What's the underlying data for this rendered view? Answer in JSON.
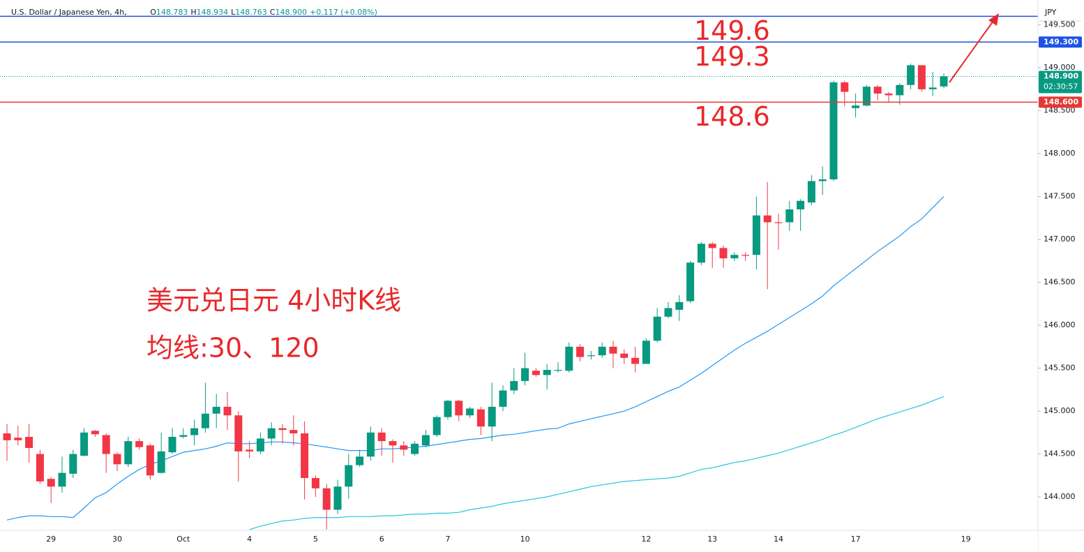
{
  "header": {
    "symbol": "U.S. Dollar / Japanese Yen, 4h,",
    "ohlc": [
      {
        "key": "O",
        "value": "148.783"
      },
      {
        "key": "H",
        "value": "148.934"
      },
      {
        "key": "L",
        "value": "148.763"
      },
      {
        "key": "C",
        "value": "148.900"
      }
    ],
    "change": "+0.117 (+0.08%)"
  },
  "chart_data": {
    "type": "candlestick",
    "currency": "JPY",
    "annotations": [
      "美元兑日元 4小时K线",
      "均线:30、120"
    ],
    "categories": [
      null,
      null,
      null,
      null,
      "29",
      null,
      null,
      null,
      null,
      null,
      "30",
      null,
      null,
      null,
      null,
      null,
      "Oct",
      null,
      null,
      null,
      null,
      null,
      "4",
      null,
      null,
      null,
      null,
      null,
      "5",
      null,
      null,
      null,
      null,
      null,
      "6",
      null,
      null,
      null,
      null,
      null,
      "7",
      null,
      null,
      null,
      null,
      null,
      null,
      "10",
      null,
      null,
      null,
      null,
      null,
      null,
      null,
      null,
      null,
      null,
      "12",
      null,
      null,
      null,
      null,
      null,
      "13",
      null,
      null,
      null,
      null,
      null,
      "14",
      null,
      null,
      null,
      null,
      null,
      null,
      "17",
      null,
      null,
      null,
      null,
      null,
      null,
      null,
      null,
      null,
      "19"
    ],
    "open": [
      144.74,
      144.69,
      144.7,
      144.5,
      144.21,
      144.12,
      144.27,
      144.48,
      144.77,
      144.72,
      144.5,
      144.38,
      144.65,
      144.6,
      144.28,
      144.52,
      144.7,
      144.72,
      144.8,
      144.97,
      145.05,
      144.95,
      144.55,
      144.53,
      144.68,
      144.8,
      144.78,
      144.74,
      144.22,
      144.1,
      143.85,
      144.12,
      144.37,
      144.47,
      144.75,
      144.65,
      144.6,
      144.5,
      144.6,
      144.72,
      144.93,
      145.12,
      144.95,
      145.02,
      144.82,
      145.05,
      145.24,
      145.35,
      145.47,
      145.42,
      145.47,
      145.47,
      145.75,
      145.64,
      145.65,
      145.75,
      145.67,
      145.62,
      145.55,
      145.82,
      146.1,
      146.18,
      146.28,
      146.73,
      146.95,
      146.9,
      146.78,
      146.82,
      146.82,
      147.28,
      147.2,
      147.2,
      147.35,
      147.43,
      147.68,
      147.7,
      148.83,
      148.53,
      148.56,
      148.78,
      148.7,
      148.68,
      148.8,
      149.03,
      148.75,
      148.783,
      null,
      null
    ],
    "high": [
      144.85,
      144.83,
      144.85,
      144.55,
      144.23,
      144.47,
      144.55,
      144.8,
      144.78,
      144.74,
      144.52,
      144.7,
      144.68,
      144.62,
      144.75,
      144.8,
      144.8,
      144.9,
      145.33,
      145.2,
      145.22,
      145.0,
      144.65,
      144.75,
      144.87,
      144.85,
      144.95,
      144.88,
      144.25,
      144.15,
      144.2,
      144.5,
      144.55,
      144.82,
      144.8,
      144.67,
      144.65,
      144.65,
      144.78,
      144.95,
      145.13,
      145.13,
      145.05,
      145.05,
      145.33,
      145.3,
      145.5,
      145.68,
      145.5,
      145.55,
      145.57,
      145.8,
      145.78,
      145.7,
      145.8,
      145.82,
      145.72,
      145.75,
      145.85,
      146.2,
      146.27,
      146.35,
      146.75,
      146.97,
      146.97,
      146.93,
      146.85,
      146.85,
      147.5,
      147.67,
      147.3,
      147.45,
      147.47,
      147.75,
      147.85,
      148.85,
      148.85,
      148.7,
      148.8,
      148.8,
      148.72,
      148.82,
      149.05,
      149.03,
      148.95,
      148.934,
      null,
      null
    ],
    "low": [
      144.42,
      144.6,
      144.4,
      144.15,
      143.93,
      144.05,
      144.22,
      144.47,
      144.7,
      144.28,
      144.3,
      144.35,
      144.55,
      144.2,
      144.27,
      144.5,
      144.68,
      144.6,
      144.75,
      144.8,
      144.78,
      144.18,
      144.45,
      144.5,
      144.6,
      144.62,
      144.6,
      143.97,
      144.0,
      143.62,
      143.8,
      143.98,
      144.35,
      144.42,
      144.48,
      144.4,
      144.48,
      144.48,
      144.58,
      144.7,
      144.9,
      144.88,
      144.92,
      144.72,
      144.65,
      145.0,
      145.2,
      145.3,
      145.4,
      145.25,
      145.45,
      145.45,
      145.58,
      145.6,
      145.62,
      145.5,
      145.55,
      145.45,
      145.55,
      145.8,
      146.08,
      146.05,
      146.26,
      146.7,
      146.67,
      146.67,
      146.75,
      146.75,
      146.65,
      146.42,
      146.88,
      147.1,
      147.1,
      147.4,
      147.52,
      147.68,
      148.55,
      148.42,
      148.55,
      148.62,
      148.6,
      148.57,
      148.75,
      148.72,
      148.67,
      148.763,
      null,
      null
    ],
    "close": [
      144.66,
      144.66,
      144.57,
      144.18,
      144.12,
      144.28,
      144.5,
      144.75,
      144.73,
      144.5,
      144.38,
      144.65,
      144.58,
      144.25,
      144.53,
      144.7,
      144.72,
      144.8,
      144.97,
      145.05,
      144.95,
      144.53,
      144.53,
      144.68,
      144.8,
      144.78,
      144.74,
      144.22,
      144.1,
      143.85,
      144.12,
      144.37,
      144.47,
      144.75,
      144.65,
      144.6,
      144.55,
      144.62,
      144.72,
      144.93,
      145.12,
      144.95,
      145.03,
      144.82,
      145.05,
      145.24,
      145.35,
      145.5,
      145.42,
      145.48,
      145.48,
      145.75,
      145.63,
      145.65,
      145.75,
      145.67,
      145.62,
      145.55,
      145.82,
      146.1,
      146.2,
      146.27,
      146.73,
      146.95,
      146.9,
      146.78,
      146.82,
      146.81,
      147.28,
      147.2,
      147.19,
      147.35,
      147.45,
      147.68,
      147.7,
      148.83,
      148.72,
      148.56,
      148.78,
      148.7,
      148.68,
      148.8,
      149.03,
      148.75,
      148.77,
      148.9,
      null,
      null
    ],
    "up_color": "#089981",
    "down_color": "#f23645",
    "lines": [
      {
        "color": "#2196f3",
        "values": [
          143.73,
          143.76,
          143.78,
          143.78,
          143.77,
          143.77,
          143.76,
          143.87,
          143.99,
          144.05,
          144.15,
          144.24,
          144.32,
          144.38,
          144.42,
          144.47,
          144.52,
          144.54,
          144.56,
          144.59,
          144.63,
          144.62,
          144.62,
          144.63,
          144.64,
          144.64,
          144.63,
          144.62,
          144.6,
          144.58,
          144.56,
          144.54,
          144.54,
          144.54,
          144.56,
          144.56,
          144.57,
          144.58,
          144.59,
          144.61,
          144.63,
          144.65,
          144.67,
          144.68,
          144.7,
          144.72,
          144.73,
          144.75,
          144.77,
          144.79,
          144.8,
          144.85,
          144.88,
          144.91,
          144.94,
          144.97,
          145.0,
          145.05,
          145.11,
          145.17,
          145.23,
          145.28,
          145.36,
          145.44,
          145.53,
          145.62,
          145.71,
          145.79,
          145.86,
          145.93,
          146.01,
          146.09,
          146.17,
          146.25,
          146.34,
          146.46,
          146.56,
          146.66,
          146.76,
          146.86,
          146.95,
          147.04,
          147.15,
          147.24,
          147.37,
          147.5,
          null,
          null
        ]
      },
      {
        "color": "#26c6da",
        "values": [
          null,
          null,
          null,
          null,
          null,
          null,
          null,
          null,
          null,
          null,
          null,
          null,
          null,
          null,
          null,
          null,
          null,
          null,
          null,
          null,
          null,
          null,
          143.62,
          143.66,
          143.69,
          143.72,
          143.73,
          143.75,
          143.76,
          143.76,
          143.76,
          143.77,
          143.77,
          143.77,
          143.78,
          143.78,
          143.79,
          143.8,
          143.8,
          143.81,
          143.81,
          143.82,
          143.85,
          143.87,
          143.89,
          143.92,
          143.94,
          143.96,
          143.98,
          144.0,
          144.03,
          144.06,
          144.09,
          144.12,
          144.14,
          144.16,
          144.18,
          144.19,
          144.2,
          144.21,
          144.22,
          144.24,
          144.28,
          144.32,
          144.34,
          144.37,
          144.4,
          144.42,
          144.45,
          144.48,
          144.51,
          144.55,
          144.59,
          144.63,
          144.67,
          144.72,
          144.76,
          144.81,
          144.86,
          144.91,
          144.95,
          144.99,
          145.03,
          145.07,
          145.12,
          145.17,
          null,
          null
        ]
      }
    ],
    "levels": [
      {
        "value": 149.6,
        "color": "#1e53e5"
      },
      {
        "value": 149.3,
        "color": "#1e53e5",
        "label": "149.300"
      },
      {
        "value": 148.6,
        "color": "#e53935",
        "label": "148.600"
      }
    ],
    "last_price": {
      "value": 148.9,
      "label": "148.900",
      "countdown": "02:30:57",
      "color": "#089981"
    },
    "annotation_color": "#e8282a",
    "ylim": [
      143.61,
      149.79
    ],
    "yticks": [
      {
        "value": 144,
        "label": "144.000"
      },
      {
        "value": 144.5,
        "label": "144.500"
      },
      {
        "value": 145,
        "label": "145.000"
      },
      {
        "value": 145.5,
        "label": "145.500"
      },
      {
        "value": 146,
        "label": "146.000"
      },
      {
        "value": 146.5,
        "label": "146.500"
      },
      {
        "value": 147,
        "label": "147.000"
      },
      {
        "value": 147.5,
        "label": "147.500"
      },
      {
        "value": 148,
        "label": "148.000"
      },
      {
        "value": 148.5,
        "label": "148.500"
      },
      {
        "value": 149,
        "label": "149.000"
      },
      {
        "value": 149.5,
        "label": "149.500"
      }
    ],
    "grid": false
  }
}
